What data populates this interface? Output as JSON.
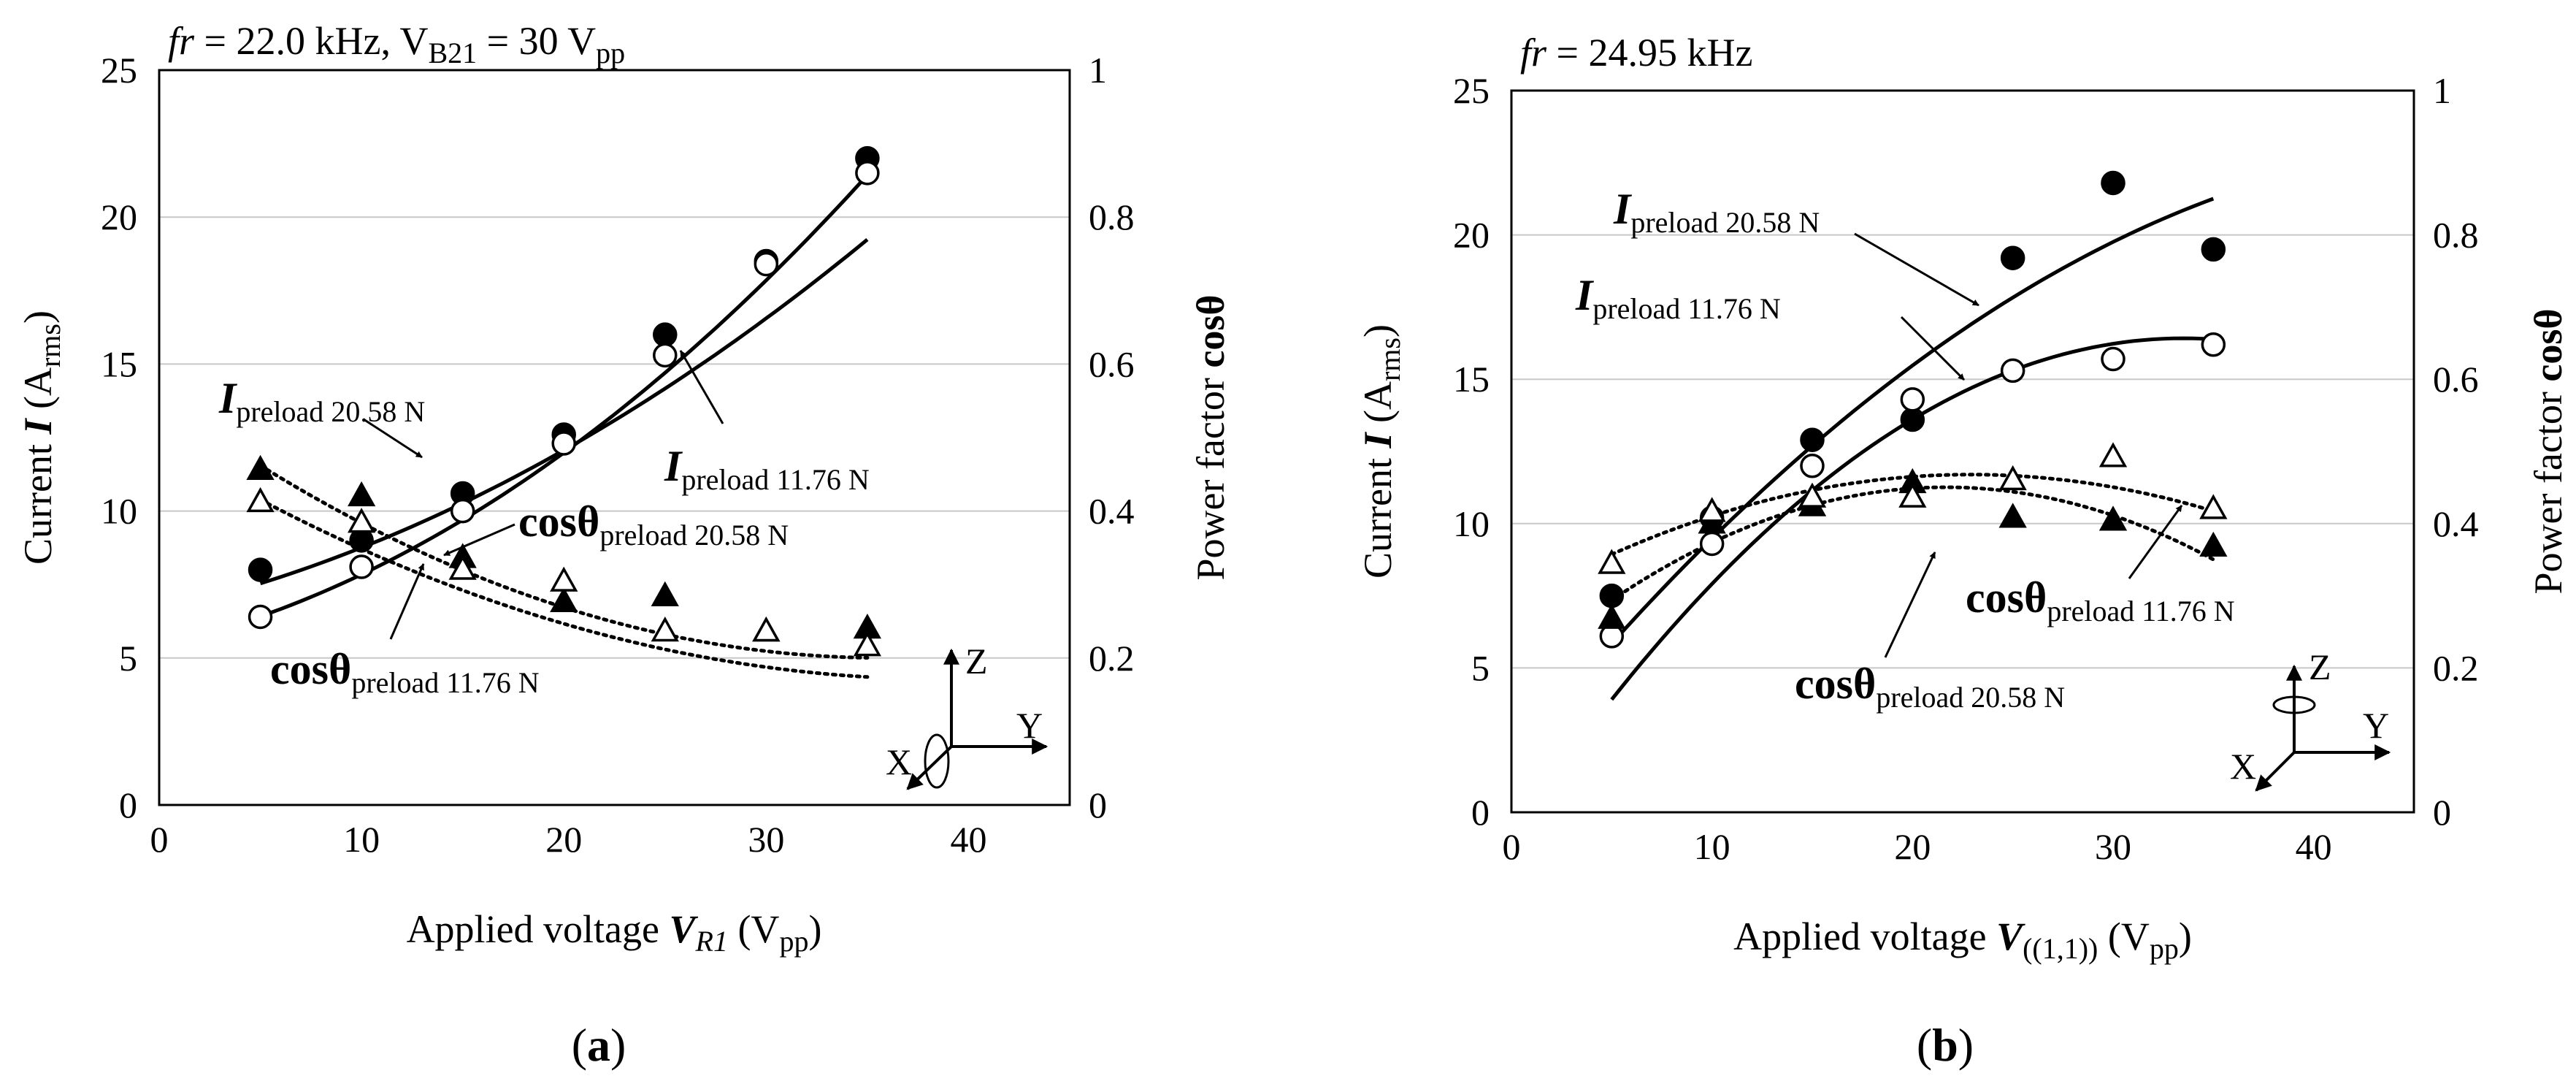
{
  "figure": {
    "panels": [
      "(a)",
      "(b)"
    ]
  },
  "chart_data": [
    {
      "type": "scatter",
      "panel_label": "a",
      "title": {
        "fr": "fr",
        "mid": " = 22.0 kHz, V",
        "sub": "B21",
        "tail": " = 30 V",
        "sub2": "pp"
      },
      "xlabel": {
        "pre": "Applied voltage ",
        "var": "V",
        "sub": "R1",
        "post1": " (V",
        "sub2": "pp",
        "post2": ")"
      },
      "ylabel_left": {
        "pre": "Current ",
        "var": "I",
        "post1": " (A",
        "sub": "rms",
        "post2": ")"
      },
      "ylabel_right": {
        "pre": "Power factor ",
        "var": "cosθ"
      },
      "xlim": [
        0,
        45
      ],
      "ylim_left": [
        0,
        25
      ],
      "ylim_right": [
        0,
        1
      ],
      "x_ticks": [
        "0",
        "10",
        "20",
        "30",
        "40"
      ],
      "y_ticks_left": [
        "0",
        "5",
        "10",
        "15",
        "20",
        "25"
      ],
      "y_ticks_right": [
        "0",
        "0.2",
        "0.4",
        "0.6",
        "0.8",
        "1"
      ],
      "series": [
        {
          "name": "I preload 20.58 N",
          "axis": "left",
          "marker": "filled-circle",
          "x": [
            5,
            10,
            15,
            20,
            25,
            30,
            35
          ],
          "y": [
            8.0,
            9.0,
            10.6,
            12.6,
            16.0,
            18.5,
            22.0
          ],
          "fit": [
            0.00585,
            0.156,
            6.61
          ],
          "fit_style": "solid"
        },
        {
          "name": "I preload 11.76 N",
          "axis": "left",
          "marker": "open-circle",
          "x": [
            5,
            10,
            15,
            20,
            25,
            30,
            35
          ],
          "y": [
            6.4,
            8.1,
            10.0,
            12.3,
            15.3,
            18.4,
            21.5
          ],
          "fit": [
            0.00861,
            0.156,
            5.42
          ],
          "fit_style": "solid"
        },
        {
          "name": "cosθ preload 20.58 N",
          "axis": "right",
          "marker": "filled-triangle",
          "x": [
            5,
            10,
            15,
            20,
            25,
            30,
            35
          ],
          "y": [
            0.456,
            0.42,
            0.336,
            0.276,
            0.284,
            0.236,
            0.24
          ],
          "fit": [
            0.000277,
            -0.0198,
            0.554
          ],
          "fit_style": "dotted"
        },
        {
          "name": "cosθ preload 11.76 N",
          "axis": "right",
          "marker": "open-triangle",
          "x": [
            5,
            10,
            15,
            20,
            25,
            30,
            35
          ],
          "y": [
            0.412,
            0.384,
            0.32,
            0.304,
            0.236,
            0.236,
            0.216
          ],
          "fit": [
            0.000214,
            -0.0166,
            0.493
          ],
          "fit_style": "dotted"
        }
      ],
      "annotations": [
        {
          "bold": "I",
          "sub": "preload",
          "tail": " 20.58 N"
        },
        {
          "bold": "I",
          "sub": "preload",
          "tail": " 11.76 N"
        },
        {
          "bold": "cosθ",
          "sub": "preload",
          "tail": " 20.58 N"
        },
        {
          "bold": "cosθ",
          "sub": "preload",
          "tail": " 11.76 N"
        }
      ],
      "axes_glyph": [
        "Z",
        "Y",
        "X"
      ]
    },
    {
      "type": "scatter",
      "panel_label": "b",
      "title": {
        "fr": "fr",
        "mid": " = 24.95 kHz"
      },
      "xlabel": {
        "pre": "Applied voltage ",
        "var": "V",
        "sub": "((1,1))",
        "post1": " (V",
        "sub2": "pp",
        "post2": ")"
      },
      "ylabel_left": {
        "pre": "Current ",
        "var": "I",
        "post1": " (A",
        "sub": "rms",
        "post2": ")"
      },
      "ylabel_right": {
        "pre": "Power factor ",
        "var": "cosθ"
      },
      "xlim": [
        0,
        45
      ],
      "ylim_left": [
        0,
        25
      ],
      "ylim_right": [
        0,
        1
      ],
      "x_ticks": [
        "0",
        "10",
        "20",
        "30",
        "40"
      ],
      "y_ticks_left": [
        "0",
        "5",
        "10",
        "15",
        "20",
        "25"
      ],
      "y_ticks_right": [
        "0",
        "0.2",
        "0.4",
        "0.6",
        "0.8",
        "1"
      ],
      "series": [
        {
          "name": "I preload 20.58 N",
          "axis": "left",
          "marker": "filled-circle",
          "x": [
            5,
            10,
            15,
            20,
            25,
            30,
            35
          ],
          "y": [
            7.5,
            10.2,
            12.9,
            13.6,
            19.2,
            21.8,
            19.5
          ],
          "fit": [
            -0.00856,
            0.856,
            1.78
          ],
          "fit_style": "solid"
        },
        {
          "name": "I preload 11.76 N",
          "axis": "left",
          "marker": "open-circle",
          "x": [
            5,
            10,
            15,
            20,
            25,
            30,
            35
          ],
          "y": [
            6.1,
            9.3,
            12.0,
            14.3,
            15.3,
            15.7,
            16.2
          ],
          "fit": [
            -0.0154,
            1.032,
            -0.87
          ],
          "fit_style": "solid"
        },
        {
          "name": "cosθ preload 20.58 N",
          "axis": "right",
          "marker": "filled-triangle",
          "x": [
            5,
            10,
            15,
            20,
            25,
            30,
            35
          ],
          "y": [
            0.268,
            0.4,
            0.424,
            0.456,
            0.408,
            0.404,
            0.368
          ],
          "fit": [
            -0.000563,
            0.0244,
            0.186
          ],
          "fit_style": "dotted"
        },
        {
          "name": "cosθ preload 11.76 N",
          "axis": "right",
          "marker": "open-triangle",
          "x": [
            5,
            10,
            15,
            20,
            25,
            30,
            35
          ],
          "y": [
            0.344,
            0.416,
            0.436,
            0.436,
            0.46,
            0.492,
            0.42
          ],
          "fit": [
            -0.000345,
            0.0158,
            0.287
          ],
          "fit_style": "dotted"
        }
      ],
      "annotations": [
        {
          "bold": "I",
          "sub": "preload",
          "tail": " 20.58 N"
        },
        {
          "bold": "I",
          "sub": "preload",
          "tail": " 11.76 N"
        },
        {
          "bold": "cosθ",
          "sub": "preload",
          "tail": " 11.76 N"
        },
        {
          "bold": "cosθ",
          "sub": "preload",
          "tail": " 20.58 N"
        }
      ],
      "axes_glyph": [
        "Z",
        "Y",
        "X"
      ]
    }
  ]
}
